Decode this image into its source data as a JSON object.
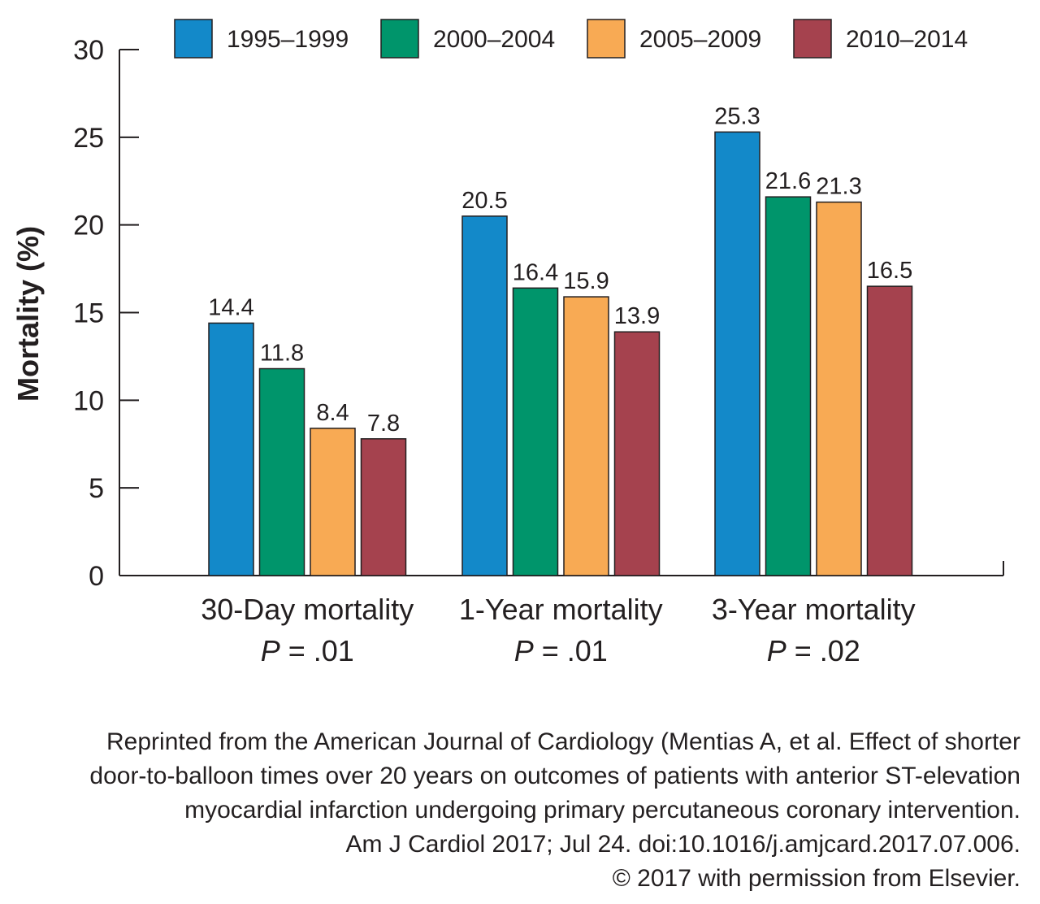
{
  "chart_data": {
    "type": "bar",
    "title": "",
    "ylabel": "Mortality (%)",
    "xlabel": "",
    "ylim": [
      0,
      30
    ],
    "yticks": [
      0,
      5,
      10,
      15,
      20,
      25,
      30
    ],
    "grid": false,
    "legend": "top",
    "categories": [
      "30-Day mortality",
      "1-Year mortality",
      "3-Year mortality"
    ],
    "category_notes": [
      "P = .01",
      "P = .01",
      "P = .02"
    ],
    "series": [
      {
        "name": "1995–1999",
        "color": "#1389c9",
        "values": [
          14.4,
          20.5,
          25.3
        ]
      },
      {
        "name": "2000–2004",
        "color": "#00956b",
        "values": [
          11.8,
          16.4,
          21.6
        ]
      },
      {
        "name": "2005–2009",
        "color": "#f8aa54",
        "values": [
          8.4,
          15.9,
          21.3
        ]
      },
      {
        "name": "2010–2014",
        "color": "#a5424e",
        "values": [
          7.8,
          13.9,
          16.5
        ]
      }
    ]
  },
  "caption": {
    "lines": [
      "Reprinted from the American Journal of Cardiology (Mentias A, et al. Effect of shorter",
      "door-to-balloon times over 20 years on outcomes of patients with anterior ST-elevation",
      "myocardial infarction undergoing primary percutaneous coronary intervention.",
      "Am J Cardiol 2017; Jul 24. doi:10.1016/j.amjcard.2017.07.006.",
      "© 2017 with permission from Elsevier."
    ]
  }
}
